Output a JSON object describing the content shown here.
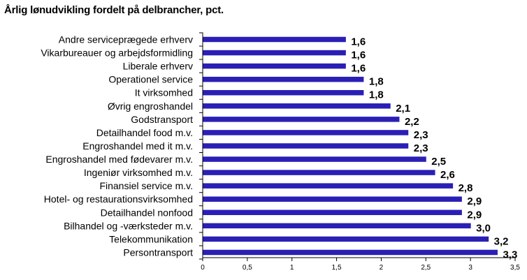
{
  "chart_data": {
    "type": "bar",
    "orientation": "horizontal",
    "title": "Årlig lønudvikling fordelt på delbrancher, pct.",
    "categories": [
      "Andre serviceprægede erhverv",
      "Vikarbureauer og arbejdsformidling",
      "Liberale erhverv",
      "Operationel service",
      "It virksomhed",
      "Øvrig engroshandel",
      "Godstransport",
      "Detailhandel food m.v.",
      "Engroshandel med it m.v.",
      "Engroshandel med fødevarer m.v.",
      "Ingeniør virksomhed m.v.",
      "Finansiel service m.v.",
      "Hotel- og restaurationsvirksomhed",
      "Detailhandel nonfood",
      "Bilhandel og -værksteder m.v.",
      "Telekommunikation",
      "Persontransport"
    ],
    "values": [
      1.6,
      1.6,
      1.6,
      1.8,
      1.8,
      2.1,
      2.2,
      2.3,
      2.3,
      2.5,
      2.6,
      2.8,
      2.9,
      2.9,
      3.0,
      3.2,
      3.3
    ],
    "value_labels": [
      "1,6",
      "1,6",
      "1,6",
      "1,8",
      "1,8",
      "2,1",
      "2,2",
      "2,3",
      "2,3",
      "2,5",
      "2,6",
      "2,8",
      "2,9",
      "2,9",
      "3,0",
      "3,2",
      "3,3"
    ],
    "xlim": [
      0,
      3.5
    ],
    "xticks": [
      0,
      0.5,
      1,
      1.5,
      2,
      2.5,
      3,
      3.5
    ],
    "xtick_labels": [
      "0",
      "0,5",
      "1",
      "1,5",
      "2",
      "2,5",
      "3",
      "3,5"
    ],
    "bar_color": "#2a1fb5",
    "grid": false,
    "legend": "none"
  }
}
